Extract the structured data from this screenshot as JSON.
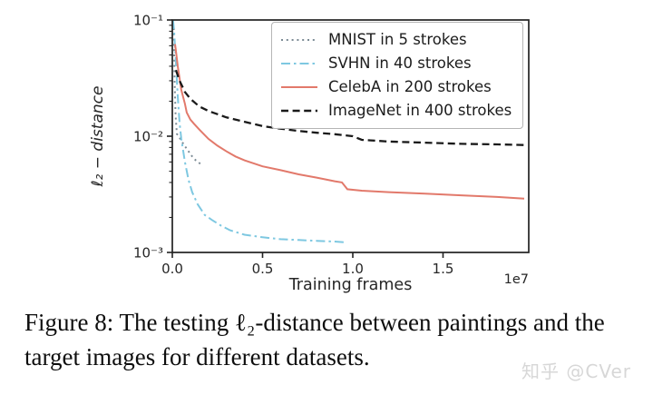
{
  "figure": {
    "caption": {
      "line1": "Figure 8: The testing ℓ₂-distance between paintings and the",
      "line2": "target images for different datasets."
    },
    "watermark": "知乎 @CVer"
  },
  "chart_data": {
    "type": "line",
    "title": "",
    "xlabel": "Training frames",
    "ylabel": "ℓ₂ − distance",
    "x_offset_label": "1e7",
    "xlim": [
      0,
      1.975
    ],
    "ylim": [
      0.001,
      0.1
    ],
    "yscale": "log",
    "grid": false,
    "legend_position": "upper right",
    "axis_color": "#222222",
    "tick_label_color": "#262626",
    "xticks": {
      "values": [
        0,
        0.5,
        1.0,
        1.5
      ],
      "labels": [
        "0.0",
        "0.5",
        "1.0",
        "1.5"
      ]
    },
    "yticks": {
      "values": [
        0.1,
        0.01,
        0.001
      ],
      "labels": [
        "10⁻¹",
        "10⁻²",
        "10⁻³"
      ]
    },
    "series": [
      {
        "name": "MNIST in 5 strokes",
        "color": "#7b8a94",
        "dash": "dotted",
        "x": [
          0.008,
          0.012,
          0.018,
          0.025,
          0.04,
          0.055,
          0.07,
          0.09,
          0.11,
          0.13,
          0.155
        ],
        "y": [
          0.085,
          0.032,
          0.015,
          0.0105,
          0.0097,
          0.0089,
          0.0082,
          0.0074,
          0.0067,
          0.0062,
          0.0058
        ]
      },
      {
        "name": "SVHN in 40 strokes",
        "color": "#7ec8e1",
        "dash": "dashdot",
        "x": [
          0.004,
          0.01,
          0.02,
          0.03,
          0.04,
          0.05,
          0.07,
          0.09,
          0.11,
          0.14,
          0.18,
          0.22,
          0.27,
          0.32,
          0.4,
          0.5,
          0.6,
          0.7,
          0.8,
          0.9,
          0.96
        ],
        "y": [
          0.1,
          0.08,
          0.042,
          0.022,
          0.013,
          0.0095,
          0.006,
          0.0042,
          0.0033,
          0.0026,
          0.0021,
          0.0019,
          0.0017,
          0.00155,
          0.00142,
          0.00135,
          0.0013,
          0.00128,
          0.00126,
          0.00124,
          0.00122
        ]
      },
      {
        "name": "CelebA in 200 strokes",
        "color": "#e2796b",
        "dash": "solid",
        "x": [
          0.015,
          0.02,
          0.03,
          0.05,
          0.07,
          0.08,
          0.1,
          0.12,
          0.15,
          0.2,
          0.25,
          0.3,
          0.35,
          0.4,
          0.5,
          0.6,
          0.7,
          0.8,
          0.9,
          0.94,
          0.97,
          1.05,
          1.2,
          1.4,
          1.6,
          1.8,
          1.95
        ],
        "y": [
          0.062,
          0.054,
          0.04,
          0.025,
          0.019,
          0.016,
          0.0139,
          0.0128,
          0.0114,
          0.0095,
          0.0083,
          0.0074,
          0.0067,
          0.0062,
          0.0055,
          0.0051,
          0.0047,
          0.0044,
          0.0041,
          0.004,
          0.0035,
          0.0034,
          0.0033,
          0.0032,
          0.0031,
          0.003,
          0.0029
        ]
      },
      {
        "name": "ImageNet in 400 strokes",
        "color": "#1a1a1a",
        "dash": "dashed",
        "x": [
          0.02,
          0.04,
          0.07,
          0.1,
          0.15,
          0.2,
          0.3,
          0.4,
          0.5,
          0.6,
          0.7,
          0.8,
          0.9,
          1.0,
          1.05,
          1.1,
          1.2,
          1.4,
          1.6,
          1.8,
          1.95
        ],
        "y": [
          0.037,
          0.03,
          0.024,
          0.021,
          0.018,
          0.0165,
          0.0145,
          0.0133,
          0.0122,
          0.0116,
          0.0111,
          0.0107,
          0.0104,
          0.01,
          0.0093,
          0.0092,
          0.009,
          0.0088,
          0.0086,
          0.0085,
          0.0084
        ]
      }
    ]
  }
}
